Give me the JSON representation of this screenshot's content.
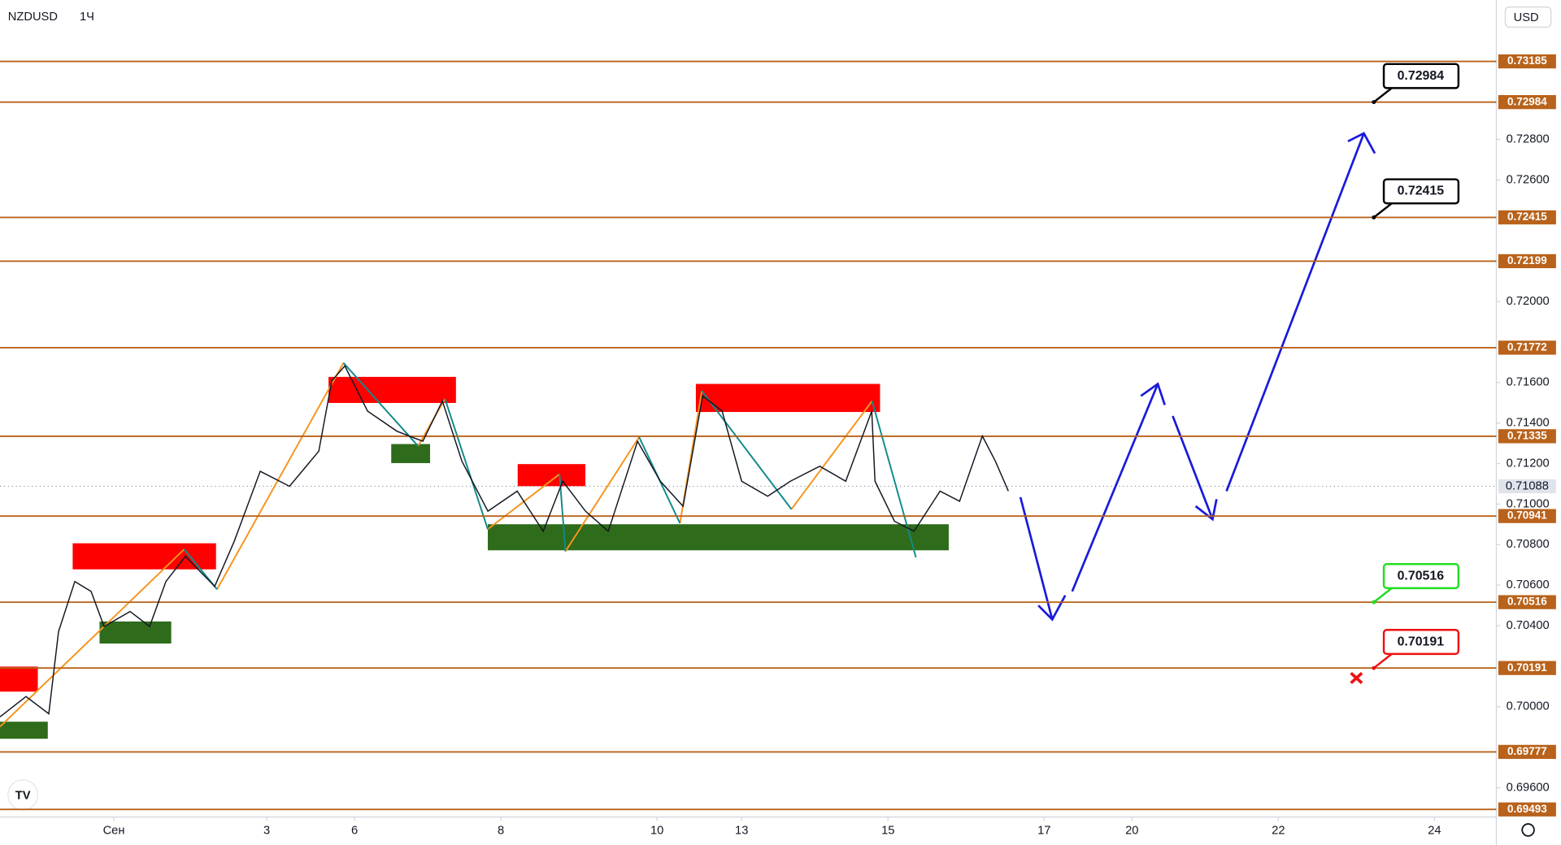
{
  "chart_data": {
    "type": "line",
    "title": "NZDUSD",
    "subtitle": "1Ч",
    "currency": "USD",
    "xlim": [
      0,
      460
    ],
    "ylim": [
      0.69456,
      0.73488
    ],
    "xticks": [
      {
        "value": 35,
        "label": "Сен"
      },
      {
        "value": 82,
        "label": "3"
      },
      {
        "value": 109,
        "label": "6"
      },
      {
        "value": 154,
        "label": "8"
      },
      {
        "value": 202,
        "label": "10"
      },
      {
        "value": 228,
        "label": "13"
      },
      {
        "value": 273,
        "label": "15"
      },
      {
        "value": 321,
        "label": "17"
      },
      {
        "value": 348,
        "label": "20"
      },
      {
        "value": 393,
        "label": "22"
      },
      {
        "value": 441,
        "label": "24"
      }
    ],
    "yticks": [
      {
        "value": 0.728,
        "label": "0.72800"
      },
      {
        "value": 0.726,
        "label": "0.72600"
      },
      {
        "value": 0.72,
        "label": "0.72000"
      },
      {
        "value": 0.716,
        "label": "0.71600"
      },
      {
        "value": 0.714,
        "label": "0.71400"
      },
      {
        "value": 0.712,
        "label": "0.71200"
      },
      {
        "value": 0.71,
        "label": "0.71000"
      },
      {
        "value": 0.708,
        "label": "0.70800"
      },
      {
        "value": 0.706,
        "label": "0.70600"
      },
      {
        "value": 0.704,
        "label": "0.70400"
      },
      {
        "value": 0.7,
        "label": "0.70000"
      },
      {
        "value": 0.696,
        "label": "0.69600"
      }
    ],
    "series": [
      {
        "name": "NZDUSD",
        "color": "#131722",
        "x": [
          0,
          8,
          15,
          18,
          23,
          28,
          32,
          40,
          46,
          51,
          57,
          66,
          72,
          80,
          89,
          98,
          102,
          106,
          113,
          122,
          130,
          136,
          142,
          150,
          159,
          167,
          173,
          180,
          187,
          196,
          203,
          210,
          216,
          222,
          228,
          236,
          243,
          252,
          260,
          268,
          269,
          275,
          281,
          289,
          295,
          302,
          306,
          310
        ],
        "values": [
          0.6995,
          0.7005,
          0.69965,
          0.70371,
          0.70618,
          0.70569,
          0.70396,
          0.7047,
          0.70396,
          0.70618,
          0.70742,
          0.70594,
          0.70816,
          0.71162,
          0.71088,
          0.71261,
          0.71608,
          0.71682,
          0.71459,
          0.7136,
          0.7131,
          0.71509,
          0.71212,
          0.70965,
          0.71064,
          0.70866,
          0.71113,
          0.70965,
          0.70866,
          0.7131,
          0.71113,
          0.70989,
          0.71534,
          0.71459,
          0.71113,
          0.71039,
          0.71113,
          0.71187,
          0.71113,
          0.71459,
          0.71113,
          0.70915,
          0.70866,
          0.71064,
          0.71014,
          0.71336,
          0.71212,
          0.71064
        ]
      }
    ],
    "levels": [
      0.73185,
      0.72984,
      0.72415,
      0.72199,
      0.71772,
      0.71335,
      0.70941,
      0.70516,
      0.70191,
      0.69777,
      0.69493
    ],
    "level_color": "#b8621b",
    "last_price": 0.71088,
    "callouts": [
      {
        "value": 0.72984,
        "color": "#000000"
      },
      {
        "value": 0.72415,
        "color": "#000000"
      },
      {
        "value": 0.70516,
        "color": "#22dd22"
      },
      {
        "value": 0.70191,
        "color": "#ee1111"
      }
    ]
  }
}
